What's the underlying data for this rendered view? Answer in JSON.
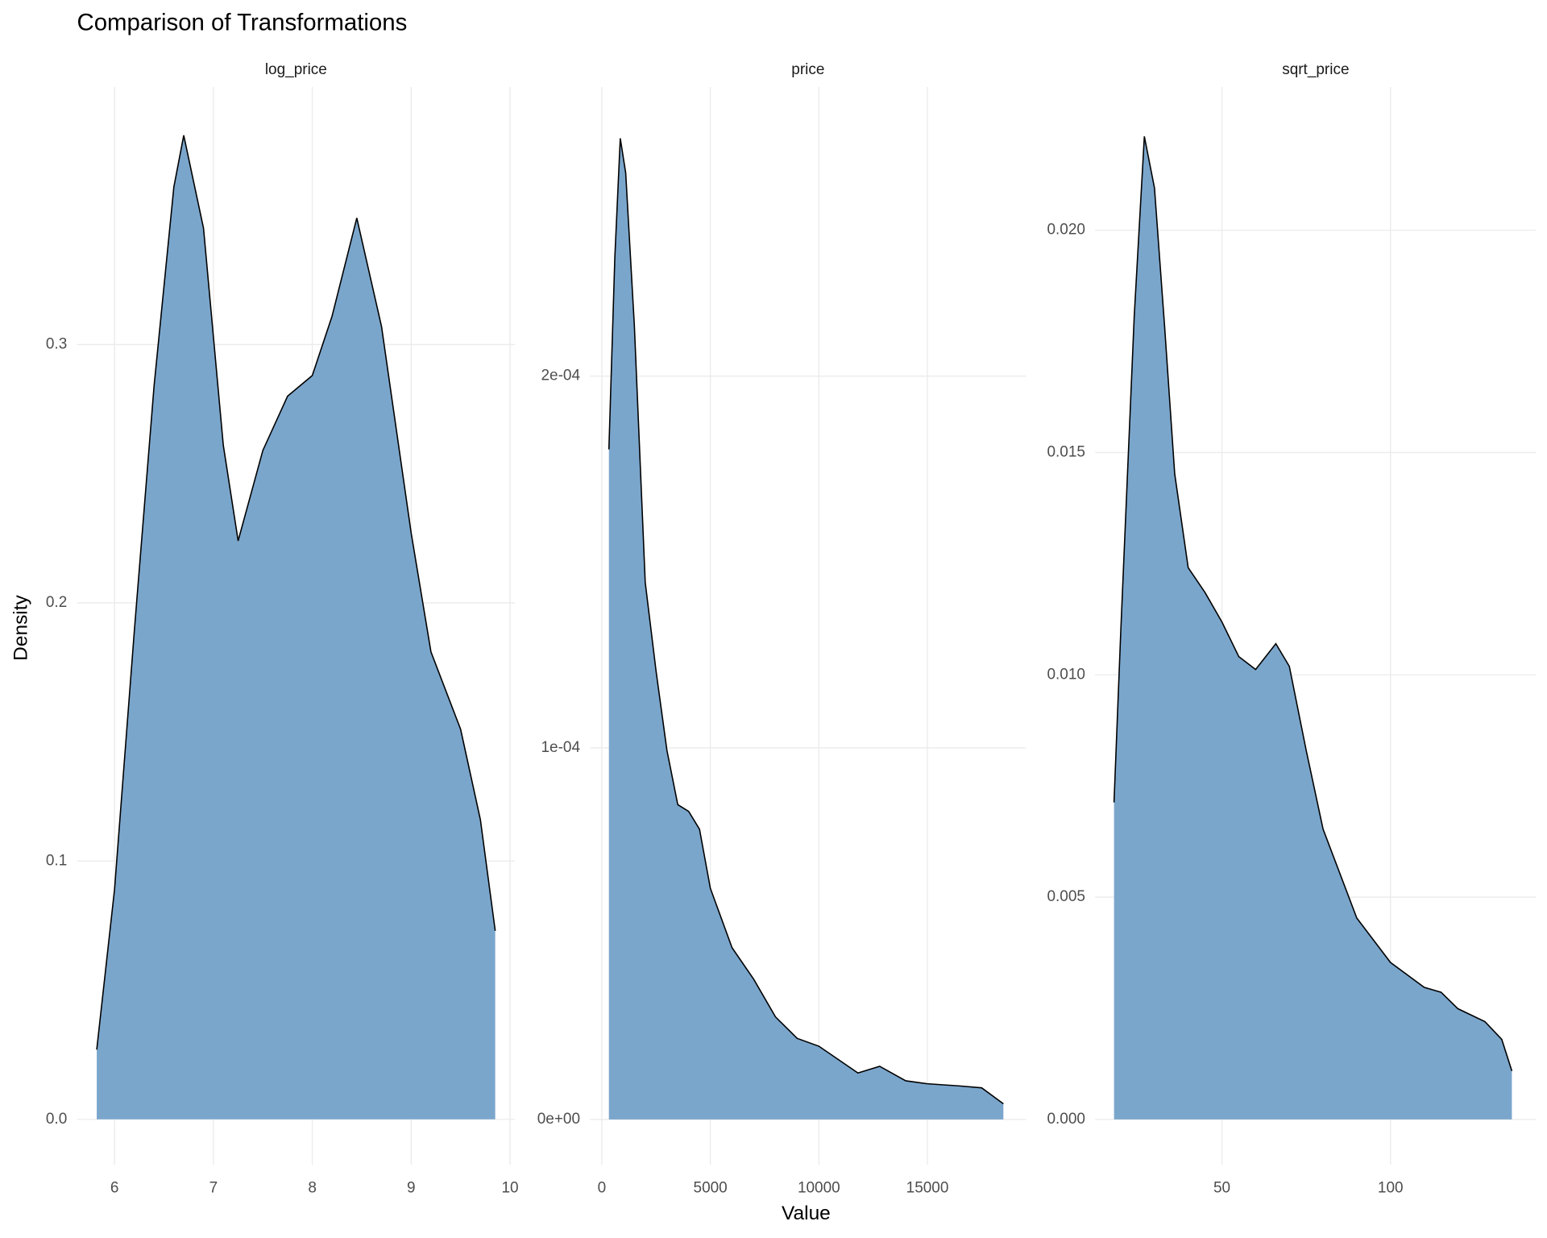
{
  "title": "Comparison of Transformations",
  "x_label": "Value",
  "y_label": "Density",
  "chart_data": [
    {
      "type": "area",
      "title": "log_price",
      "color": "#7ba6cc",
      "line_color": "#000000",
      "x": [
        5.82,
        6.0,
        6.2,
        6.4,
        6.6,
        6.7,
        6.9,
        7.1,
        7.25,
        7.5,
        7.75,
        8.0,
        8.2,
        8.45,
        8.7,
        9.0,
        9.2,
        9.5,
        9.7,
        9.85
      ],
      "values": [
        0.027,
        0.089,
        0.189,
        0.284,
        0.361,
        0.381,
        0.345,
        0.261,
        0.224,
        0.259,
        0.28,
        0.288,
        0.311,
        0.349,
        0.307,
        0.227,
        0.181,
        0.151,
        0.116,
        0.073
      ],
      "xlim": [
        5.62,
        10.05
      ],
      "ylim": [
        -0.0176,
        0.3997
      ],
      "xticks": [
        6,
        7,
        8,
        9,
        10
      ],
      "yticks": [
        {
          "value": 0,
          "label": "0.0"
        },
        {
          "value": 0.1,
          "label": "0.1"
        },
        {
          "value": 0.2,
          "label": "0.2"
        },
        {
          "value": 0.3,
          "label": "0.3"
        }
      ],
      "grid": true
    },
    {
      "type": "area",
      "title": "price",
      "color": "#7ba6cc",
      "line_color": "#000000",
      "x": [
        326,
        600,
        850,
        1100,
        1500,
        2000,
        2500,
        3000,
        3500,
        4000,
        4500,
        5000,
        6000,
        7000,
        8000,
        9000,
        10000,
        11000,
        11800,
        12800,
        14000,
        15000,
        16500,
        17500,
        18500
      ],
      "values": [
        0.0001803,
        0.000232,
        0.000264,
        0.0002547,
        0.0002135,
        0.0001445,
        0.0001206,
        9.93e-05,
        8.47e-05,
        8.29e-05,
        7.81e-05,
        6.22e-05,
        4.62e-05,
        3.77e-05,
        2.76e-05,
        2.18e-05,
        1.97e-05,
        1.57e-05,
        1.25e-05,
        1.43e-05,
        1.04e-05,
        9.6e-06,
        9e-06,
        8.5e-06,
        4.2e-06
      ],
      "xlim": [
        -545,
        19545
      ],
      "ylim": [
        -1.22e-05,
        0.0002778
      ],
      "xticks": [
        0,
        5000,
        10000,
        15000
      ],
      "yticks": [
        {
          "value": 0,
          "label": "0e+00"
        },
        {
          "value": 0.0001,
          "label": "1e-04"
        },
        {
          "value": 0.0002,
          "label": "2e-04"
        }
      ],
      "grid": true
    },
    {
      "type": "area",
      "title": "sqrt_price",
      "color": "#7ba6cc",
      "line_color": "#000000",
      "x": [
        18,
        20,
        24,
        27,
        30,
        33,
        36,
        40,
        45,
        50,
        55,
        60,
        66,
        70,
        75,
        80,
        90,
        100,
        110,
        115,
        120,
        128,
        133,
        136
      ],
      "values": [
        0.00713,
        0.01097,
        0.01807,
        0.02211,
        0.02095,
        0.01784,
        0.01452,
        0.01241,
        0.01185,
        0.01119,
        0.01041,
        0.01012,
        0.0107,
        0.01019,
        0.0083,
        0.00653,
        0.00453,
        0.00353,
        0.00297,
        0.00286,
        0.00249,
        0.0022,
        0.0018,
        0.00109
      ],
      "xlim": [
        12.4,
        143.2
      ],
      "ylim": [
        -0.00102,
        0.02322
      ],
      "xticks": [
        50,
        100
      ],
      "yticks": [
        {
          "value": 0,
          "label": "0.000"
        },
        {
          "value": 0.005,
          "label": "0.005"
        },
        {
          "value": 0.01,
          "label": "0.010"
        },
        {
          "value": 0.015,
          "label": "0.015"
        },
        {
          "value": 0.02,
          "label": "0.020"
        }
      ],
      "grid": true
    }
  ]
}
